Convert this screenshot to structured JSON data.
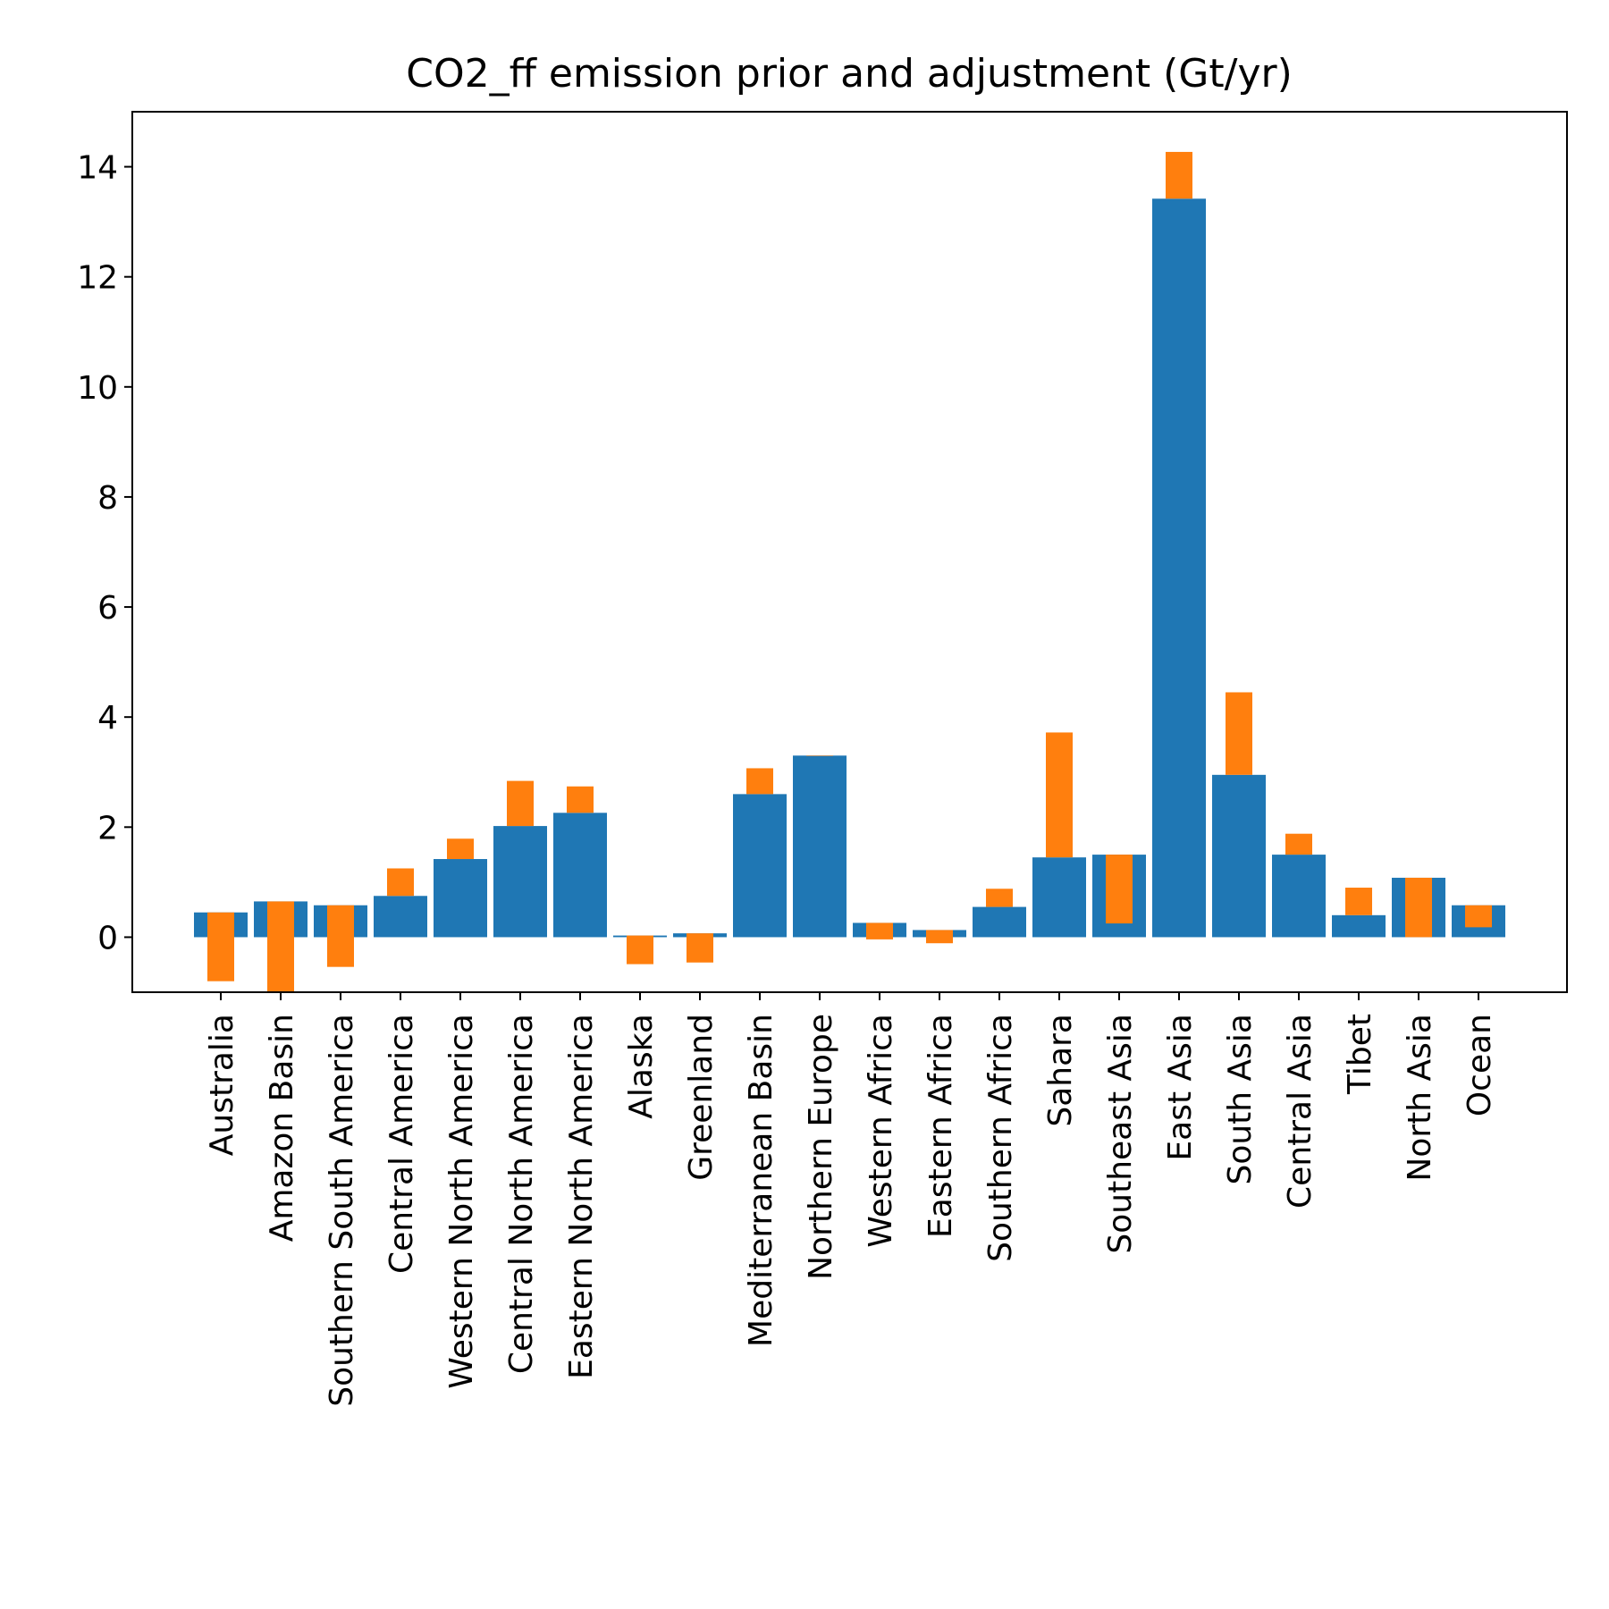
{
  "chart_data": {
    "type": "bar",
    "title": "CO2_ff emission prior and adjustment (Gt/yr)",
    "xlabel": "",
    "ylabel": "",
    "ylim": [
      -1,
      15
    ],
    "yticks": [
      0,
      2,
      4,
      6,
      8,
      10,
      12,
      14
    ],
    "grid": false,
    "legend": "none",
    "categories": [
      "Australia",
      "Amazon Basin",
      "Southern South America",
      "Central America",
      "Western North America",
      "Central North America",
      "Eastern North America",
      "Alaska",
      "Greenland",
      "Mediterranean Basin",
      "Northern Europe",
      "Western Africa",
      "Eastern Africa",
      "Southern Africa",
      "Sahara",
      "Southeast Asia",
      "East Asia",
      "South Asia",
      "Central Asia",
      "Tibet",
      "North Asia",
      "Ocean"
    ],
    "series": [
      {
        "kind": "prior",
        "color": "#1f77b4",
        "values": [
          0.45,
          0.65,
          0.58,
          0.75,
          1.42,
          2.02,
          2.26,
          0.03,
          0.07,
          2.6,
          3.3,
          0.26,
          0.13,
          0.55,
          1.45,
          1.5,
          13.42,
          2.95,
          1.5,
          0.4,
          1.08,
          0.58
        ]
      },
      {
        "kind": "adjustment",
        "color": "#ff7f0e",
        "values": [
          -1.25,
          -1.65,
          -1.12,
          0.5,
          0.37,
          0.82,
          0.48,
          -0.52,
          -0.53,
          0.47,
          0.0,
          -0.3,
          -0.24,
          0.33,
          2.27,
          -1.25,
          0.85,
          1.5,
          0.38,
          0.5,
          -1.08,
          -0.4
        ]
      }
    ]
  }
}
